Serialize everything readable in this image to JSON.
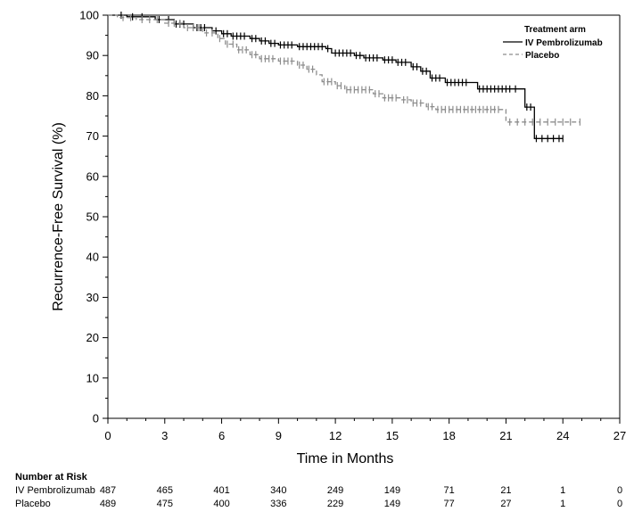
{
  "chart_data": {
    "type": "line",
    "subtype": "kaplan-meier",
    "title": "",
    "xlabel": "Time in Months",
    "ylabel": "Recurrence-Free Survival (%)",
    "xlim": [
      0,
      27
    ],
    "ylim": [
      0,
      100
    ],
    "x_ticks": [
      0,
      3,
      6,
      9,
      12,
      15,
      18,
      21,
      24,
      27
    ],
    "y_ticks": [
      0,
      10,
      20,
      30,
      40,
      50,
      60,
      70,
      80,
      90,
      100
    ],
    "x_minor_step": 1,
    "y_minor_step": 5,
    "grid": false,
    "legend": {
      "title": "Treatment arm",
      "position": "top-right"
    },
    "series": [
      {
        "name": "IV Pembrolizumab",
        "color": "#000000",
        "line_style": "solid",
        "steps": [
          [
            0,
            100
          ],
          [
            1.0,
            99.6
          ],
          [
            2.5,
            98.9
          ],
          [
            3.5,
            97.8
          ],
          [
            4.5,
            96.9
          ],
          [
            5.5,
            96.1
          ],
          [
            6.0,
            95.4
          ],
          [
            6.5,
            94.8
          ],
          [
            7.5,
            94.2
          ],
          [
            8.0,
            93.6
          ],
          [
            8.5,
            93.0
          ],
          [
            9.0,
            92.6
          ],
          [
            10.0,
            92.2
          ],
          [
            11.5,
            91.7
          ],
          [
            11.8,
            90.6
          ],
          [
            13.0,
            90.0
          ],
          [
            13.5,
            89.4
          ],
          [
            14.5,
            88.9
          ],
          [
            15.2,
            88.3
          ],
          [
            16.0,
            87.2
          ],
          [
            16.5,
            86.1
          ],
          [
            17.0,
            84.4
          ],
          [
            17.8,
            83.3
          ],
          [
            19.5,
            81.7
          ],
          [
            22.0,
            77.2
          ],
          [
            22.5,
            69.4
          ],
          [
            24.0,
            69.4
          ]
        ],
        "censor_marks": [
          [
            0.7,
            100
          ],
          [
            1.3,
            99.6
          ],
          [
            1.8,
            99.6
          ],
          [
            2.7,
            98.9
          ],
          [
            3.2,
            98.9
          ],
          [
            3.6,
            97.8
          ],
          [
            3.8,
            97.8
          ],
          [
            4.0,
            97.8
          ],
          [
            4.7,
            96.9
          ],
          [
            4.9,
            96.9
          ],
          [
            5.1,
            96.9
          ],
          [
            5.7,
            96.1
          ],
          [
            6.1,
            95.4
          ],
          [
            6.3,
            95.4
          ],
          [
            6.6,
            94.8
          ],
          [
            6.8,
            94.8
          ],
          [
            7.0,
            94.8
          ],
          [
            7.2,
            94.8
          ],
          [
            7.6,
            94.2
          ],
          [
            7.8,
            94.2
          ],
          [
            8.1,
            93.6
          ],
          [
            8.3,
            93.6
          ],
          [
            8.6,
            93.0
          ],
          [
            8.8,
            93.0
          ],
          [
            9.1,
            92.6
          ],
          [
            9.3,
            92.6
          ],
          [
            9.5,
            92.6
          ],
          [
            9.7,
            92.6
          ],
          [
            10.1,
            92.2
          ],
          [
            10.3,
            92.2
          ],
          [
            10.5,
            92.2
          ],
          [
            10.7,
            92.2
          ],
          [
            10.9,
            92.2
          ],
          [
            11.1,
            92.2
          ],
          [
            11.3,
            92.2
          ],
          [
            11.6,
            91.7
          ],
          [
            12.0,
            90.6
          ],
          [
            12.2,
            90.6
          ],
          [
            12.4,
            90.6
          ],
          [
            12.6,
            90.6
          ],
          [
            12.8,
            90.6
          ],
          [
            13.1,
            90.0
          ],
          [
            13.3,
            90.0
          ],
          [
            13.6,
            89.4
          ],
          [
            13.8,
            89.4
          ],
          [
            14.0,
            89.4
          ],
          [
            14.2,
            89.4
          ],
          [
            14.6,
            88.9
          ],
          [
            14.8,
            88.9
          ],
          [
            15.0,
            88.9
          ],
          [
            15.3,
            88.3
          ],
          [
            15.5,
            88.3
          ],
          [
            15.7,
            88.3
          ],
          [
            16.1,
            87.2
          ],
          [
            16.3,
            87.2
          ],
          [
            16.6,
            86.1
          ],
          [
            16.8,
            86.1
          ],
          [
            17.1,
            84.4
          ],
          [
            17.3,
            84.4
          ],
          [
            17.5,
            84.4
          ],
          [
            17.9,
            83.3
          ],
          [
            18.1,
            83.3
          ],
          [
            18.3,
            83.3
          ],
          [
            18.5,
            83.3
          ],
          [
            18.7,
            83.3
          ],
          [
            18.9,
            83.3
          ],
          [
            19.6,
            81.7
          ],
          [
            19.8,
            81.7
          ],
          [
            20.0,
            81.7
          ],
          [
            20.2,
            81.7
          ],
          [
            20.4,
            81.7
          ],
          [
            20.6,
            81.7
          ],
          [
            20.8,
            81.7
          ],
          [
            21.0,
            81.7
          ],
          [
            21.2,
            81.7
          ],
          [
            21.5,
            81.7
          ],
          [
            22.1,
            77.2
          ],
          [
            22.3,
            77.2
          ],
          [
            22.6,
            69.4
          ],
          [
            22.9,
            69.4
          ],
          [
            23.2,
            69.4
          ],
          [
            23.5,
            69.4
          ],
          [
            23.8,
            69.4
          ],
          [
            24.0,
            69.4
          ]
        ]
      },
      {
        "name": "Placebo",
        "color": "#8c8c8c",
        "line_style": "dashed",
        "steps": [
          [
            0,
            100
          ],
          [
            0.5,
            99.4
          ],
          [
            1.5,
            98.9
          ],
          [
            3.0,
            98.0
          ],
          [
            4.0,
            96.9
          ],
          [
            5.0,
            95.6
          ],
          [
            5.8,
            94.2
          ],
          [
            6.2,
            92.8
          ],
          [
            6.8,
            91.4
          ],
          [
            7.5,
            90.2
          ],
          [
            8.0,
            89.2
          ],
          [
            9.0,
            88.6
          ],
          [
            10.0,
            87.6
          ],
          [
            10.5,
            86.6
          ],
          [
            11.0,
            85.2
          ],
          [
            11.3,
            83.5
          ],
          [
            12.0,
            82.5
          ],
          [
            12.5,
            81.5
          ],
          [
            14.0,
            80.5
          ],
          [
            14.5,
            79.5
          ],
          [
            15.5,
            79.0
          ],
          [
            16.0,
            78.2
          ],
          [
            16.8,
            77.3
          ],
          [
            17.3,
            76.6
          ],
          [
            21.0,
            73.5
          ],
          [
            24.9,
            73.5
          ]
        ],
        "censor_marks": [
          [
            0.8,
            99.4
          ],
          [
            1.2,
            99.4
          ],
          [
            1.8,
            98.9
          ],
          [
            2.2,
            98.9
          ],
          [
            2.6,
            98.9
          ],
          [
            3.2,
            98.0
          ],
          [
            3.5,
            98.0
          ],
          [
            3.8,
            98.0
          ],
          [
            4.2,
            96.9
          ],
          [
            4.5,
            96.9
          ],
          [
            4.8,
            96.9
          ],
          [
            5.2,
            95.6
          ],
          [
            5.5,
            95.6
          ],
          [
            5.9,
            94.2
          ],
          [
            6.3,
            92.8
          ],
          [
            6.6,
            92.8
          ],
          [
            6.9,
            91.4
          ],
          [
            7.1,
            91.4
          ],
          [
            7.3,
            91.4
          ],
          [
            7.6,
            90.2
          ],
          [
            7.8,
            90.2
          ],
          [
            8.1,
            89.2
          ],
          [
            8.3,
            89.2
          ],
          [
            8.5,
            89.2
          ],
          [
            8.7,
            89.2
          ],
          [
            9.1,
            88.6
          ],
          [
            9.3,
            88.6
          ],
          [
            9.5,
            88.6
          ],
          [
            9.7,
            88.6
          ],
          [
            10.1,
            87.6
          ],
          [
            10.3,
            87.6
          ],
          [
            10.6,
            86.6
          ],
          [
            10.8,
            86.6
          ],
          [
            11.4,
            83.5
          ],
          [
            11.6,
            83.5
          ],
          [
            11.8,
            83.5
          ],
          [
            12.1,
            82.5
          ],
          [
            12.3,
            82.5
          ],
          [
            12.6,
            81.5
          ],
          [
            12.8,
            81.5
          ],
          [
            13.0,
            81.5
          ],
          [
            13.2,
            81.5
          ],
          [
            13.4,
            81.5
          ],
          [
            13.6,
            81.5
          ],
          [
            13.8,
            81.5
          ],
          [
            14.1,
            80.5
          ],
          [
            14.3,
            80.5
          ],
          [
            14.6,
            79.5
          ],
          [
            14.8,
            79.5
          ],
          [
            15.0,
            79.5
          ],
          [
            15.2,
            79.5
          ],
          [
            15.6,
            79.0
          ],
          [
            15.8,
            79.0
          ],
          [
            16.1,
            78.2
          ],
          [
            16.3,
            78.2
          ],
          [
            16.5,
            78.2
          ],
          [
            16.9,
            77.3
          ],
          [
            17.1,
            77.3
          ],
          [
            17.4,
            76.6
          ],
          [
            17.6,
            76.6
          ],
          [
            17.8,
            76.6
          ],
          [
            18.0,
            76.6
          ],
          [
            18.2,
            76.6
          ],
          [
            18.4,
            76.6
          ],
          [
            18.6,
            76.6
          ],
          [
            18.8,
            76.6
          ],
          [
            19.0,
            76.6
          ],
          [
            19.2,
            76.6
          ],
          [
            19.4,
            76.6
          ],
          [
            19.6,
            76.6
          ],
          [
            19.8,
            76.6
          ],
          [
            20.0,
            76.6
          ],
          [
            20.2,
            76.6
          ],
          [
            20.4,
            76.6
          ],
          [
            20.6,
            76.6
          ],
          [
            21.2,
            73.5
          ],
          [
            21.6,
            73.5
          ],
          [
            22.0,
            73.5
          ],
          [
            22.4,
            73.5
          ],
          [
            22.8,
            73.5
          ],
          [
            23.2,
            73.5
          ],
          [
            23.6,
            73.5
          ],
          [
            24.0,
            73.5
          ],
          [
            24.4,
            73.5
          ],
          [
            24.9,
            73.5
          ]
        ]
      }
    ],
    "number_at_risk": {
      "title": "Number at Risk",
      "arms": [
        {
          "label": "IV Pembrolizumab",
          "counts": [
            487,
            465,
            401,
            340,
            249,
            149,
            71,
            21,
            1,
            0
          ]
        },
        {
          "label": "Placebo",
          "counts": [
            489,
            475,
            400,
            336,
            229,
            149,
            77,
            27,
            1,
            0
          ]
        }
      ]
    }
  }
}
